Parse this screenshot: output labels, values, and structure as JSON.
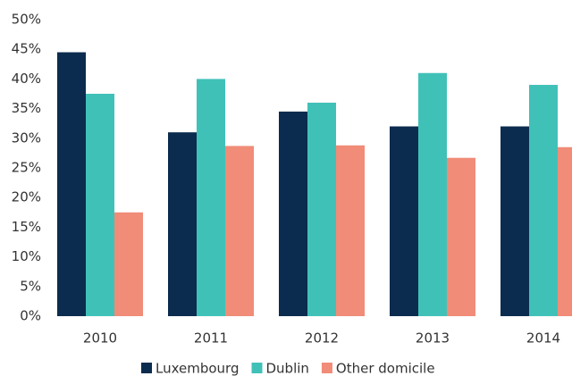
{
  "chart_data": {
    "type": "bar",
    "categories": [
      "2010",
      "2011",
      "2012",
      "2013",
      "2014"
    ],
    "series": [
      {
        "name": "Luxembourg",
        "color": "#0b2c4e",
        "values": [
          44.5,
          31,
          34.5,
          32,
          32
        ]
      },
      {
        "name": "Dublin",
        "color": "#40c1b8",
        "values": [
          37.5,
          40,
          36,
          41,
          39
        ]
      },
      {
        "name": "Other domicile",
        "color": "#f08c78",
        "values": [
          17.5,
          28.7,
          28.8,
          26.7,
          28.5
        ]
      }
    ],
    "ylim": [
      0,
      50
    ],
    "yticks": [
      {
        "value": 0,
        "label": "0%"
      },
      {
        "value": 5,
        "label": "5%"
      },
      {
        "value": 10,
        "label": "10%"
      },
      {
        "value": 15,
        "label": "15%"
      },
      {
        "value": 20,
        "label": "20%"
      },
      {
        "value": 25,
        "label": "25%"
      },
      {
        "value": 30,
        "label": "30%"
      },
      {
        "value": 35,
        "label": "35%"
      },
      {
        "value": 40,
        "label": "40%"
      },
      {
        "value": 45,
        "label": "45%"
      },
      {
        "value": 50,
        "label": "50%"
      }
    ],
    "grid": false,
    "legend": "bottom"
  }
}
